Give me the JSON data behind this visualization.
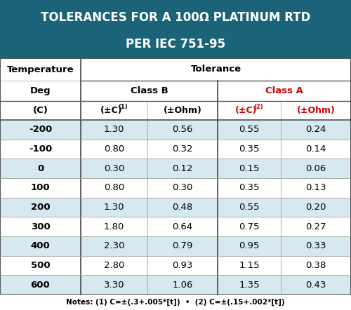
{
  "title_line1": "TOLERANCES FOR A 100Ω PLATINUM RTD",
  "title_line2": "PER IEC 751-95",
  "title_bg": "#1a6378",
  "title_color": "#ffffff",
  "alt_row_bg": "#d6e8f0",
  "white_row_bg": "#ffffff",
  "class_a_color": "#cc0000",
  "text_color": "#000000",
  "temperatures": [
    "-200",
    "-100",
    "0",
    "100",
    "200",
    "300",
    "400",
    "500",
    "600"
  ],
  "class_b_c": [
    1.3,
    0.8,
    0.3,
    0.8,
    1.3,
    1.8,
    2.3,
    2.8,
    3.3
  ],
  "class_b_ohm": [
    0.56,
    0.32,
    0.12,
    0.3,
    0.48,
    0.64,
    0.79,
    0.93,
    1.06
  ],
  "class_a_c": [
    0.55,
    0.35,
    0.15,
    0.35,
    0.55,
    0.75,
    0.95,
    1.15,
    1.35
  ],
  "class_a_ohm": [
    0.24,
    0.14,
    0.06,
    0.13,
    0.2,
    0.27,
    0.33,
    0.38,
    0.43
  ],
  "notes": "Notes: (1) C=±(.3+.005*[t])  •  (2) C=±(.15+.002*[t])"
}
